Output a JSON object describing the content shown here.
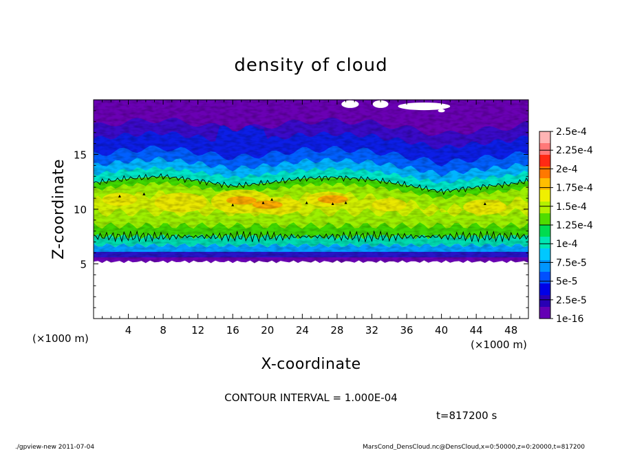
{
  "chart_data": {
    "type": "heatmap",
    "title": "density of cloud",
    "xlabel": "X-coordinate",
    "ylabel": "Z-coordinate",
    "x_unit": "(×1000 m)",
    "y_unit": "(×1000 m)",
    "xlim": [
      0,
      50
    ],
    "ylim": [
      0,
      20
    ],
    "x_ticks": [
      4,
      8,
      12,
      16,
      20,
      24,
      28,
      32,
      36,
      40,
      44,
      48
    ],
    "y_ticks": [
      5,
      10,
      15
    ],
    "colorbar_labels": [
      "2.5e-4",
      "2.25e-4",
      "2e-4",
      "1.75e-4",
      "1.5e-4",
      "1.25e-4",
      "1e-4",
      "7.5e-5",
      "5e-5",
      "2.5e-5",
      "1e-16"
    ],
    "colorbar_colors": [
      "#ffb4b4",
      "#ff7878",
      "#ff2a14",
      "#ff7800",
      "#ffbe00",
      "#f0f000",
      "#b4f000",
      "#50dc00",
      "#00dc50",
      "#00e6b4",
      "#00c8ff",
      "#0096ff",
      "#0050ff",
      "#0000e6",
      "#2800b4",
      "#6400b4"
    ],
    "contour_level": 0.0001,
    "cloud_layer": {
      "base_z": 5.2,
      "top_z": 19.8,
      "lower_contour_z": 7.5,
      "upper_contour_profile": {
        "x": [
          0,
          4,
          8,
          12,
          16,
          20,
          24,
          28,
          32,
          36,
          40,
          44,
          48,
          50
        ],
        "z": [
          12.4,
          12.8,
          13.0,
          12.6,
          12.1,
          12.4,
          12.8,
          12.9,
          12.7,
          12.2,
          11.6,
          12.0,
          12.3,
          12.6
        ]
      },
      "deep_blue_trough": {
        "x": [
          14,
          20
        ],
        "z": [
          15.5,
          17.2
        ]
      }
    },
    "annotations": {
      "contour_interval": "CONTOUR INTERVAL = 1.000E-04",
      "time": "t=817200 s"
    }
  },
  "footer": {
    "left": "./gpview-new  2011-07-04",
    "right": "MarsCond_DensCloud.nc@DensCloud,x=0:50000,z=0:20000,t=817200"
  }
}
